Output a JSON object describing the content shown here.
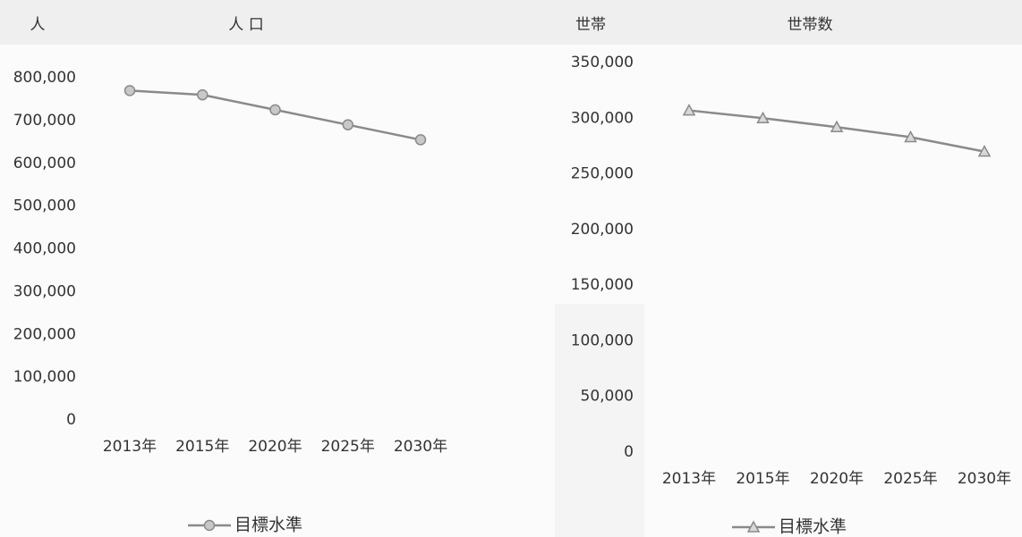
{
  "chart_data": [
    {
      "type": "line",
      "title": "人 口",
      "y_label": "人",
      "categories": [
        "2013年",
        "2015年",
        "2020年",
        "2025年",
        "2030年"
      ],
      "series": [
        {
          "name": "目標水準",
          "color": "#8a8a8a",
          "marker": "circle",
          "values": [
            770000,
            760000,
            725000,
            690000,
            655000
          ]
        }
      ],
      "ylim": [
        0,
        800000
      ],
      "yticks": [
        0,
        {
          "value": 100000,
          "label": "100,000"
        },
        {
          "value": 200000,
          "label": "200,000"
        },
        {
          "value": 300000,
          "label": "300,000"
        },
        {
          "value": 400000,
          "label": "400,000"
        },
        {
          "value": 500000,
          "label": "500,000"
        },
        {
          "value": 600000,
          "label": "600,000"
        },
        {
          "value": 700000,
          "label": "700,000"
        },
        {
          "value": 800000,
          "label": "800,000"
        }
      ],
      "grid": false,
      "legend": "bottom"
    },
    {
      "type": "line",
      "title": "世帯数",
      "y_label": "世帯",
      "categories": [
        "2013年",
        "2015年",
        "2020年",
        "2025年",
        "2030年"
      ],
      "series": [
        {
          "name": "目標水準",
          "color": "#8a8a8a",
          "marker": "triangle",
          "values": [
            307000,
            300000,
            292000,
            283000,
            270000
          ]
        }
      ],
      "ylim": [
        0,
        350000
      ],
      "yticks": [
        0,
        {
          "value": 50000,
          "label": "50,000"
        },
        {
          "value": 100000,
          "label": "100,000"
        },
        {
          "value": 150000,
          "label": "150,000"
        },
        {
          "value": 200000,
          "label": "200,000"
        },
        {
          "value": 250000,
          "label": "250,000"
        },
        {
          "value": 300000,
          "label": "300,000"
        },
        {
          "value": 350000,
          "label": "350,000"
        }
      ],
      "grid": false,
      "legend": "bottom"
    }
  ]
}
